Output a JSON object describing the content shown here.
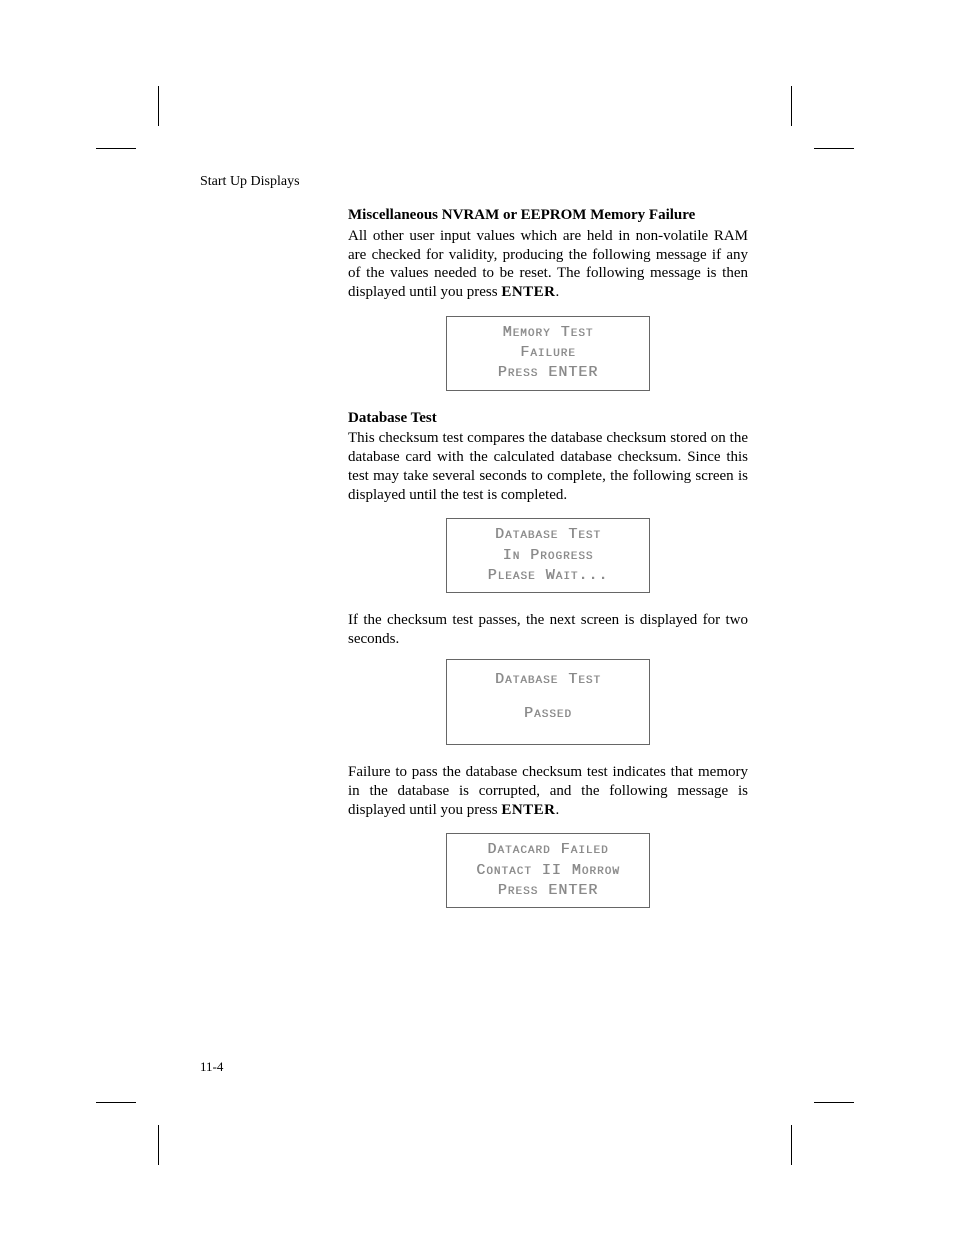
{
  "running_head": "Start Up Displays",
  "page_number": "11-4",
  "section1": {
    "heading": "Miscellaneous NVRAM or EEPROM Memory Failure",
    "para_pre": "All other user input values which are held in non-volatile RAM are checked for validity, producing the following message if any of the values needed to be reset. The following message is then displayed until you press ",
    "enter": "ENTER",
    "period": "."
  },
  "display1": {
    "l1": "Memory Test",
    "l2": "Failure",
    "l3": "Press ENTER"
  },
  "section2": {
    "heading": "Database Test",
    "para": "This checksum test compares the database checksum stored on the database card with the calculated database checksum. Since this test may take several seconds to complete, the following screen is displayed until the test is completed."
  },
  "display2": {
    "l1": "Database Test",
    "l2": "In Progress",
    "l3": "Please Wait..."
  },
  "mid_para": "If the checksum test passes, the next screen is displayed for two seconds.",
  "display3": {
    "l1": "Database Test",
    "l2": "Passed"
  },
  "fail_para_pre": "Failure to pass the database checksum test indicates that memory in the database is corrupted, and the following message is displayed until you press ",
  "fail_enter": "ENTER",
  "fail_period": ".",
  "display4": {
    "l1": "Datacard Failed",
    "l2": "Contact II Morrow",
    "l3": "Press ENTER"
  }
}
